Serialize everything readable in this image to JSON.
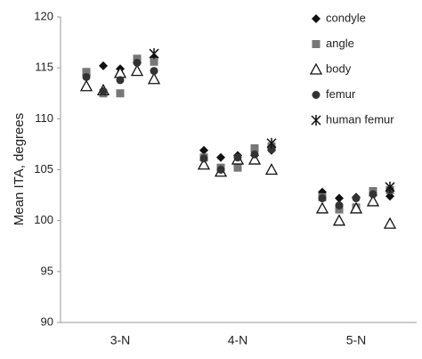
{
  "chart_data": {
    "type": "scatter",
    "y_label": "Mean ITA, degrees",
    "categories": [
      null,
      null,
      "3-N",
      null,
      null,
      null,
      null,
      "4-N",
      null,
      null,
      null,
      null,
      "5-N",
      null,
      null
    ],
    "ylim": [
      90,
      120
    ],
    "yticks": [
      90,
      95,
      100,
      105,
      110,
      115,
      120
    ],
    "legend": "top-right",
    "series": [
      {
        "name": "condyle",
        "marker": "diamond",
        "color": "#111111",
        "values": [
          114.3,
          115.2,
          114.9,
          115.5,
          116.0,
          106.9,
          106.2,
          106.4,
          106.4,
          106.9,
          102.8,
          102.2,
          102.3,
          102.5,
          102.4
        ]
      },
      {
        "name": "angle",
        "marker": "square",
        "color": "#777777",
        "values": [
          114.6,
          112.5,
          112.5,
          115.9,
          115.6,
          106.2,
          105.2,
          105.2,
          107.1,
          107.3,
          102.3,
          101.1,
          101.3,
          102.9,
          103.0
        ]
      },
      {
        "name": "body",
        "marker": "triangle",
        "color": "#ffffff",
        "values": [
          113.2,
          112.8,
          114.5,
          114.7,
          113.9,
          105.5,
          104.8,
          106.0,
          106.0,
          105.0,
          101.2,
          100.0,
          101.2,
          101.9,
          99.7
        ]
      },
      {
        "name": "femur",
        "marker": "circle",
        "color": "#333333",
        "values": [
          114.1,
          112.7,
          113.8,
          115.5,
          114.7,
          106.1,
          105.0,
          106.2,
          106.5,
          107.0,
          102.2,
          101.5,
          102.2,
          102.6,
          103.0
        ]
      },
      {
        "name": "human femur",
        "marker": "asterisk",
        "color": "#111111",
        "values": [
          null,
          null,
          null,
          null,
          116.4,
          null,
          null,
          null,
          null,
          107.6,
          null,
          null,
          null,
          null,
          103.3
        ]
      }
    ]
  }
}
